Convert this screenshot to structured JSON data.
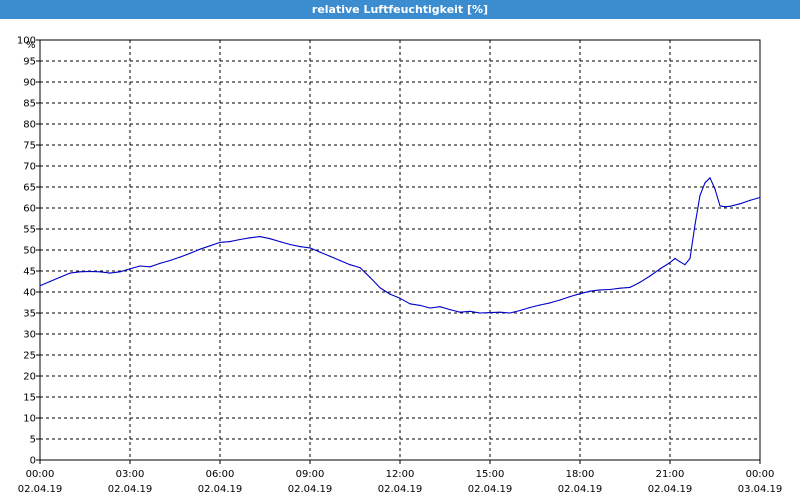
{
  "window": {
    "title": "relative Luftfeuchtigkeit [%]"
  },
  "chart_data": {
    "type": "line",
    "title": "relative Luftfeuchtigkeit [%]",
    "xlabel": "",
    "ylabel": "%",
    "ylim": [
      0,
      100
    ],
    "y_ticks": [
      0,
      5,
      10,
      15,
      20,
      25,
      30,
      35,
      40,
      45,
      50,
      55,
      60,
      65,
      70,
      75,
      80,
      85,
      90,
      95,
      100
    ],
    "grid": true,
    "grid_style": "dashed",
    "x_ticks": [
      {
        "time": "00:00",
        "date": "02.04.19"
      },
      {
        "time": "03:00",
        "date": "02.04.19"
      },
      {
        "time": "06:00",
        "date": "02.04.19"
      },
      {
        "time": "09:00",
        "date": "02.04.19"
      },
      {
        "time": "12:00",
        "date": "02.04.19"
      },
      {
        "time": "15:00",
        "date": "02.04.19"
      },
      {
        "time": "18:00",
        "date": "02.04.19"
      },
      {
        "time": "21:00",
        "date": "02.04.19"
      },
      {
        "time": "00:00",
        "date": "03.04.19"
      }
    ],
    "x_range": [
      "02.04.19 00:00",
      "03.04.19 00:00"
    ],
    "line_color": "#0000c8",
    "series": [
      {
        "x": [
          "02.04.19 00:00",
          "02.04.19 00:20",
          "02.04.19 00:40",
          "02.04.19 01:00",
          "02.04.19 01:20",
          "02.04.19 01:40",
          "02.04.19 02:00",
          "02.04.19 02:20",
          "02.04.19 02:40",
          "02.04.19 03:00",
          "02.04.19 03:20",
          "02.04.19 03:40",
          "02.04.19 04:00",
          "02.04.19 04:20",
          "02.04.19 04:40",
          "02.04.19 05:00",
          "02.04.19 05:20",
          "02.04.19 05:40",
          "02.04.19 06:00",
          "02.04.19 06:20",
          "02.04.19 06:40",
          "02.04.19 07:00",
          "02.04.19 07:20",
          "02.04.19 07:40",
          "02.04.19 08:00",
          "02.04.19 08:20",
          "02.04.19 08:40",
          "02.04.19 09:00",
          "02.04.19 09:20",
          "02.04.19 09:40",
          "02.04.19 10:00",
          "02.04.19 10:20",
          "02.04.19 10:40",
          "02.04.19 11:00",
          "02.04.19 11:20",
          "02.04.19 11:40",
          "02.04.19 12:00",
          "02.04.19 12:20",
          "02.04.19 12:40",
          "02.04.19 13:00",
          "02.04.19 13:20",
          "02.04.19 13:40",
          "02.04.19 14:00",
          "02.04.19 14:20",
          "02.04.19 14:40",
          "02.04.19 15:00",
          "02.04.19 15:20",
          "02.04.19 15:40",
          "02.04.19 16:00",
          "02.04.19 16:20",
          "02.04.19 16:40",
          "02.04.19 17:00",
          "02.04.19 17:20",
          "02.04.19 17:40",
          "02.04.19 18:00",
          "02.04.19 18:20",
          "02.04.19 18:40",
          "02.04.19 19:00",
          "02.04.19 19:20",
          "02.04.19 19:40",
          "02.04.19 20:00",
          "02.04.19 20:20",
          "02.04.19 20:40",
          "02.04.19 21:00",
          "02.04.19 21:10",
          "02.04.19 21:20",
          "02.04.19 21:30",
          "02.04.19 21:40",
          "02.04.19 21:50",
          "02.04.19 22:00",
          "02.04.19 22:10",
          "02.04.19 22:20",
          "02.04.19 22:30",
          "02.04.19 22:40",
          "02.04.19 22:50",
          "02.04.19 23:00",
          "02.04.19 23:20",
          "02.04.19 23:40",
          "03.04.19 00:00"
        ],
        "y": [
          41.5,
          42.5,
          43.5,
          44.5,
          44.8,
          44.9,
          44.8,
          44.5,
          44.8,
          45.5,
          46.2,
          46.0,
          46.8,
          47.5,
          48.3,
          49.2,
          50.2,
          51.0,
          51.8,
          52.0,
          52.5,
          52.9,
          53.2,
          52.7,
          52.0,
          51.3,
          50.8,
          50.5,
          49.5,
          48.5,
          47.5,
          46.5,
          45.8,
          43.5,
          41.0,
          39.5,
          38.5,
          37.2,
          36.8,
          36.2,
          36.5,
          35.8,
          35.2,
          35.4,
          35.0,
          35.1,
          35.2,
          35.0,
          35.6,
          36.3,
          36.9,
          37.4,
          38.1,
          38.9,
          39.6,
          40.2,
          40.5,
          40.6,
          40.9,
          41.1,
          42.3,
          43.8,
          45.5,
          47.0,
          48.0,
          47.2,
          46.5,
          48.0,
          56.0,
          63.0,
          66.0,
          67.2,
          64.5,
          60.5,
          60.3,
          60.4,
          61.0,
          61.8,
          62.5
        ]
      }
    ]
  }
}
